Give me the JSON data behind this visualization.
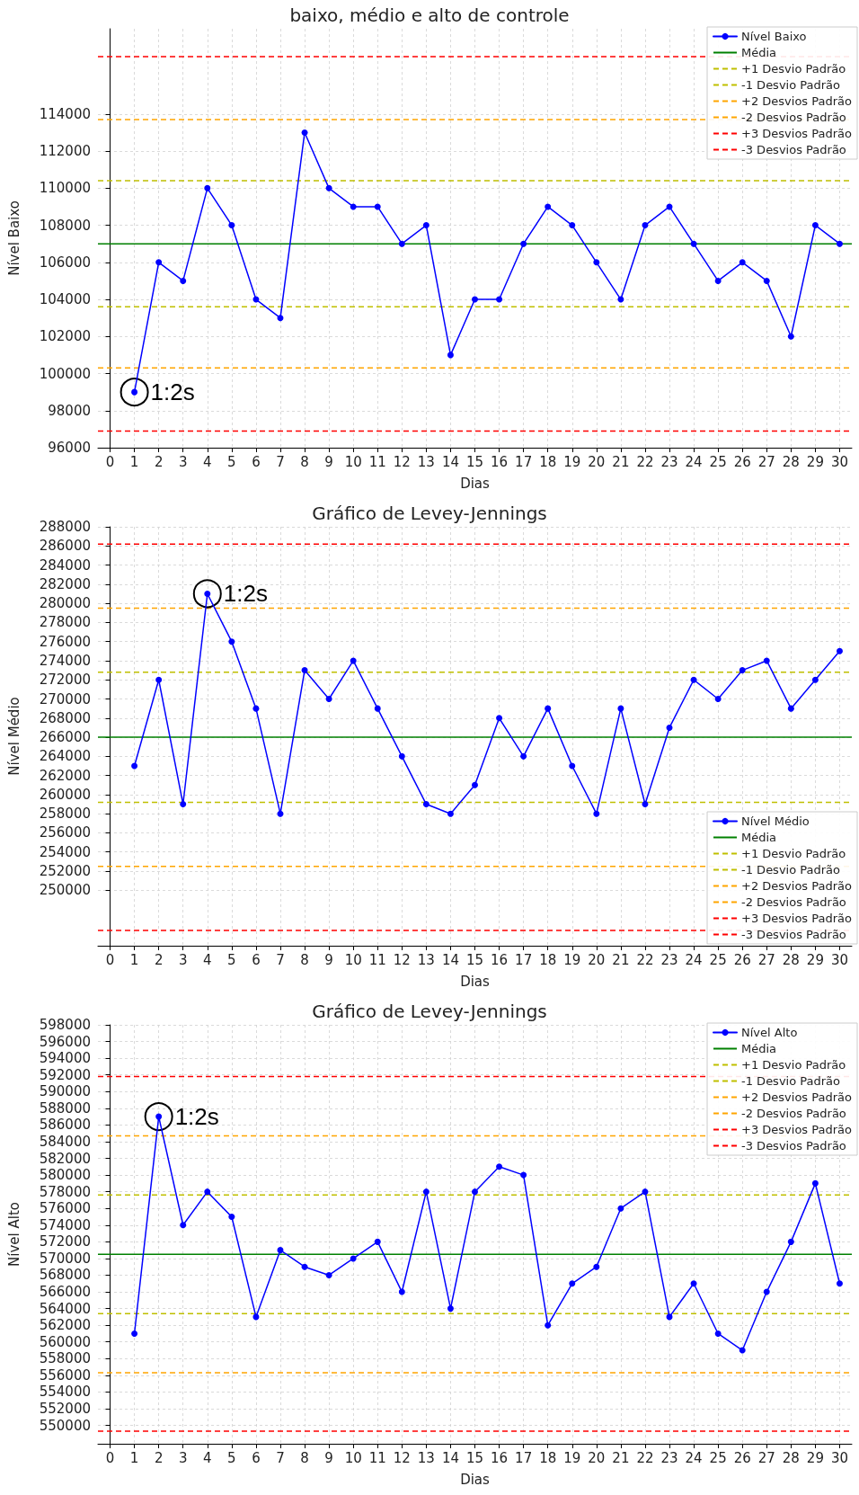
{
  "chart_data": [
    {
      "type": "line",
      "title": "baixo, médio e alto de controle",
      "xlabel": "Dias",
      "ylabel": "Nível Baixo",
      "x": [
        1,
        2,
        3,
        4,
        5,
        6,
        7,
        8,
        9,
        10,
        11,
        12,
        13,
        14,
        15,
        16,
        17,
        18,
        19,
        20,
        21,
        22,
        23,
        24,
        25,
        26,
        27,
        28,
        29,
        30
      ],
      "series": [
        {
          "name": "Nível Baixo",
          "color": "#0000ff",
          "values": [
            99000,
            106000,
            105000,
            110000,
            108000,
            104000,
            103000,
            113000,
            110000,
            109000,
            109000,
            107000,
            108000,
            101000,
            104000,
            104000,
            107000,
            109000,
            108000,
            106000,
            104000,
            108000,
            109000,
            107000,
            105000,
            106000,
            105000,
            102000,
            108000,
            107000
          ]
        }
      ],
      "ref_lines": [
        {
          "axis": "y",
          "value": 107000,
          "label": "Média",
          "color": "#008000",
          "line_style": "solid"
        },
        {
          "axis": "y",
          "value": 110400,
          "label": "+1 Desvio Padrão",
          "color": "#bfbf00",
          "line_style": "dashed"
        },
        {
          "axis": "y",
          "value": 103600,
          "label": "-1 Desvio Padrão",
          "color": "#bfbf00",
          "line_style": "dashed"
        },
        {
          "axis": "y",
          "value": 113700,
          "label": "+2 Desvios Padrão",
          "color": "#ffa500",
          "line_style": "dashed"
        },
        {
          "axis": "y",
          "value": 100300,
          "label": "-2 Desvios Padrão",
          "color": "#ffa500",
          "line_style": "dashed"
        },
        {
          "axis": "y",
          "value": 117100,
          "label": "+3 Desvios Padrão",
          "color": "#ff0000",
          "line_style": "dashed"
        },
        {
          "axis": "y",
          "value": 96900,
          "label": "-3 Desvios Padrão",
          "color": "#ff0000",
          "line_style": "dashed"
        }
      ],
      "annotations": [
        {
          "text": "1:2s",
          "x": 1,
          "y": 99000
        }
      ],
      "xlim": [
        -0.5,
        30.5
      ],
      "xticks": [
        0,
        1,
        2,
        3,
        4,
        5,
        6,
        7,
        8,
        9,
        10,
        11,
        12,
        13,
        14,
        15,
        16,
        17,
        18,
        19,
        20,
        21,
        22,
        23,
        24,
        25,
        26,
        27,
        28,
        29,
        30
      ],
      "ylim": [
        96000,
        118600
      ],
      "yticks": [
        96000,
        98000,
        100000,
        102000,
        104000,
        106000,
        108000,
        110000,
        112000,
        114000
      ],
      "grid": true,
      "legend": "top right",
      "marker": "circle",
      "line_style": "solid"
    },
    {
      "type": "line",
      "title": "Gráfico de Levey-Jennings",
      "xlabel": "Dias",
      "ylabel": "Nível Médio",
      "x": [
        1,
        2,
        3,
        4,
        5,
        6,
        7,
        8,
        9,
        10,
        11,
        12,
        13,
        14,
        15,
        16,
        17,
        18,
        19,
        20,
        21,
        22,
        23,
        24,
        25,
        26,
        27,
        28,
        29,
        30
      ],
      "series": [
        {
          "name": "Nível Médio",
          "color": "#0000ff",
          "values": [
            263000,
            272000,
            259000,
            281000,
            276000,
            269000,
            258000,
            273000,
            270000,
            274000,
            269000,
            264000,
            259000,
            258000,
            261000,
            268000,
            264000,
            269000,
            263000,
            258000,
            269000,
            259000,
            267000,
            272000,
            270000,
            273000,
            274000,
            269000,
            272000,
            275000
          ]
        }
      ],
      "ref_lines": [
        {
          "axis": "y",
          "value": 266000,
          "label": "Média",
          "color": "#008000",
          "line_style": "solid"
        },
        {
          "axis": "y",
          "value": 272800,
          "label": "+1 Desvio Padrão",
          "color": "#bfbf00",
          "line_style": "dashed"
        },
        {
          "axis": "y",
          "value": 259200,
          "label": "-1 Desvio Padrão",
          "color": "#bfbf00",
          "line_style": "dashed"
        },
        {
          "axis": "y",
          "value": 279500,
          "label": "+2 Desvios Padrão",
          "color": "#ffa500",
          "line_style": "dashed"
        },
        {
          "axis": "y",
          "value": 252500,
          "label": "-2 Desvios Padrão",
          "color": "#ffa500",
          "line_style": "dashed"
        },
        {
          "axis": "y",
          "value": 286200,
          "label": "+3 Desvios Padrão",
          "color": "#ff0000",
          "line_style": "dashed"
        },
        {
          "axis": "y",
          "value": 245800,
          "label": "-3 Desvios Padrão",
          "color": "#ff0000",
          "line_style": "dashed"
        }
      ],
      "annotations": [
        {
          "text": "1:2s",
          "x": 4,
          "y": 281000
        }
      ],
      "xlim": [
        -0.5,
        30.5
      ],
      "xticks": [
        0,
        1,
        2,
        3,
        4,
        5,
        6,
        7,
        8,
        9,
        10,
        11,
        12,
        13,
        14,
        15,
        16,
        17,
        18,
        19,
        20,
        21,
        22,
        23,
        24,
        25,
        26,
        27,
        28,
        29,
        30
      ],
      "ylim": [
        244200,
        288000
      ],
      "yticks": [
        250000,
        252000,
        254000,
        256000,
        258000,
        260000,
        262000,
        264000,
        266000,
        268000,
        270000,
        272000,
        274000,
        276000,
        278000,
        280000,
        282000,
        284000,
        286000,
        288000
      ],
      "grid": true,
      "legend": "bottom right",
      "marker": "circle",
      "line_style": "solid"
    },
    {
      "type": "line",
      "title": "Gráfico de Levey-Jennings",
      "xlabel": "Dias",
      "ylabel": "Nível Alto",
      "x": [
        1,
        2,
        3,
        4,
        5,
        6,
        7,
        8,
        9,
        10,
        11,
        12,
        13,
        14,
        15,
        16,
        17,
        18,
        19,
        20,
        21,
        22,
        23,
        24,
        25,
        26,
        27,
        28,
        29,
        30
      ],
      "series": [
        {
          "name": "Nível Alto",
          "color": "#0000ff",
          "values": [
            561000,
            587000,
            574000,
            578000,
            575000,
            563000,
            571000,
            569000,
            568000,
            570000,
            572000,
            566000,
            578000,
            564000,
            578000,
            581000,
            580000,
            562000,
            567000,
            569000,
            576000,
            578000,
            563000,
            567000,
            561000,
            559000,
            566000,
            572000,
            579000,
            567000
          ]
        }
      ],
      "ref_lines": [
        {
          "axis": "y",
          "value": 570500,
          "label": "Média",
          "color": "#008000",
          "line_style": "solid"
        },
        {
          "axis": "y",
          "value": 577600,
          "label": "+1 Desvio Padrão",
          "color": "#bfbf00",
          "line_style": "dashed"
        },
        {
          "axis": "y",
          "value": 563400,
          "label": "-1 Desvio Padrão",
          "color": "#bfbf00",
          "line_style": "dashed"
        },
        {
          "axis": "y",
          "value": 584700,
          "label": "+2 Desvios Padrão",
          "color": "#ffa500",
          "line_style": "dashed"
        },
        {
          "axis": "y",
          "value": 556300,
          "label": "-2 Desvios Padrão",
          "color": "#ffa500",
          "line_style": "dashed"
        },
        {
          "axis": "y",
          "value": 591800,
          "label": "+3 Desvios Padrão",
          "color": "#ff0000",
          "line_style": "dashed"
        },
        {
          "axis": "y",
          "value": 549300,
          "label": "-3 Desvios Padrão",
          "color": "#ff0000",
          "line_style": "dashed"
        }
      ],
      "annotations": [
        {
          "text": "1:2s",
          "x": 2,
          "y": 587000
        }
      ],
      "xlim": [
        -0.5,
        30.5
      ],
      "xticks": [
        0,
        1,
        2,
        3,
        4,
        5,
        6,
        7,
        8,
        9,
        10,
        11,
        12,
        13,
        14,
        15,
        16,
        17,
        18,
        19,
        20,
        21,
        22,
        23,
        24,
        25,
        26,
        27,
        28,
        29,
        30
      ],
      "ylim": [
        547800,
        598000
      ],
      "yticks": [
        550000,
        552000,
        554000,
        556000,
        558000,
        560000,
        562000,
        564000,
        566000,
        568000,
        570000,
        572000,
        574000,
        576000,
        578000,
        580000,
        582000,
        584000,
        586000,
        588000,
        590000,
        592000,
        594000,
        596000,
        598000
      ],
      "grid": true,
      "legend": "top right",
      "marker": "circle",
      "line_style": "solid"
    }
  ]
}
